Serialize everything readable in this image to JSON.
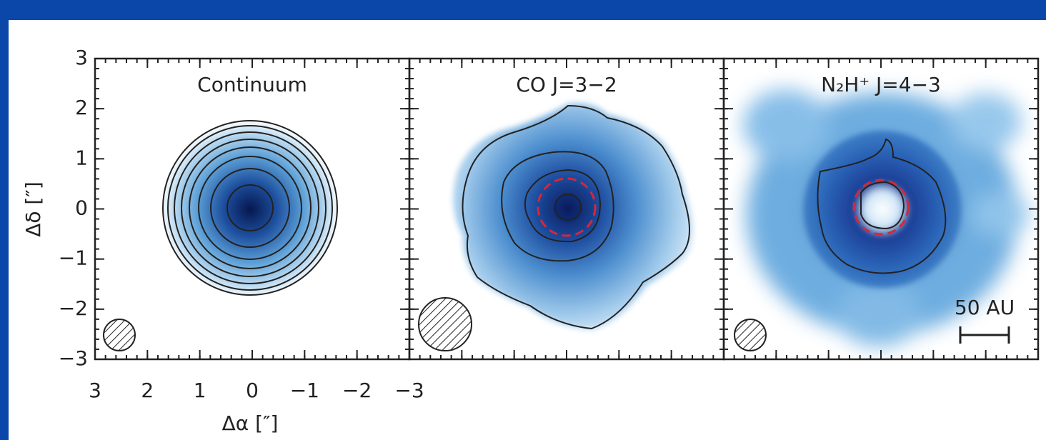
{
  "chart_data": {
    "type": "image",
    "xlabel": "Δα [″]",
    "ylabel": "Δδ [″]",
    "xlim": [
      3,
      -3
    ],
    "ylim": [
      -3,
      3
    ],
    "xticks": [
      3,
      2,
      1,
      0,
      {
        "value": -1,
        "label": "−1"
      },
      {
        "value": -2,
        "label": "−2"
      },
      {
        "value": -3,
        "label": "−3"
      }
    ],
    "yticks": [
      {
        "value": -3,
        "label": "−3"
      },
      {
        "value": -2,
        "label": "−2"
      },
      {
        "value": -1,
        "label": "−1"
      },
      0,
      1,
      2,
      3
    ],
    "panels": [
      {
        "title": "Continuum"
      },
      {
        "title": "CO J=3−2"
      },
      {
        "title": "N₂H⁺ J=4−3",
        "scale_bar": "50 AU"
      }
    ]
  }
}
